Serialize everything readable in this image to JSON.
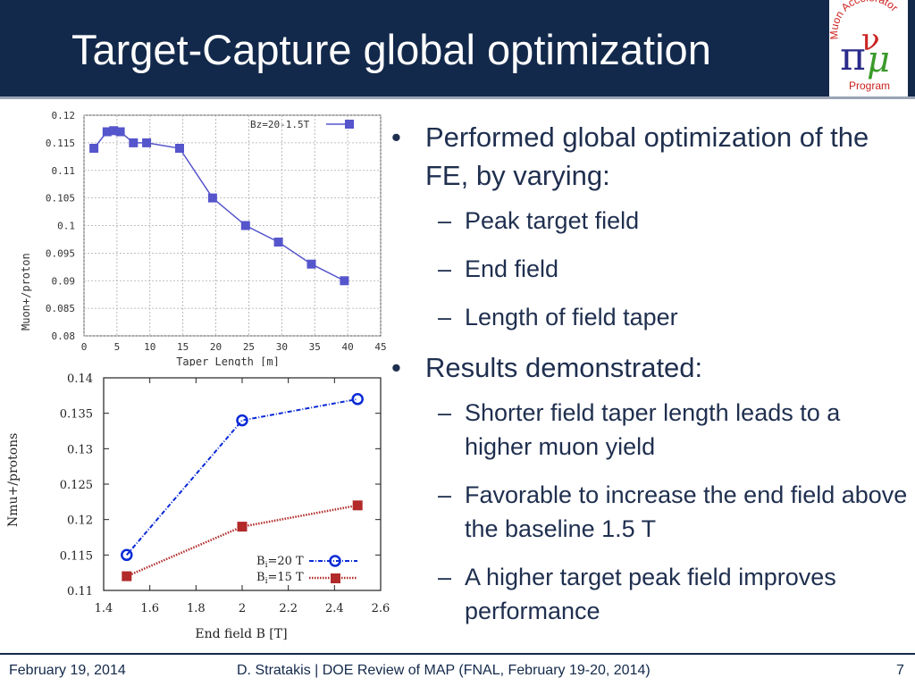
{
  "slide": {
    "title": "Target-Capture global optimization"
  },
  "logo": {
    "text_top": "Muon Accelerator",
    "text_bottom": "Program",
    "glyphs": [
      "π",
      "ν",
      "μ"
    ]
  },
  "bullets": [
    {
      "text": "Performed global optimization of the FE, by varying:",
      "sub": [
        "Peak target field",
        "End field",
        "Length of field taper"
      ]
    },
    {
      "text": "Results demonstrated:",
      "sub": [
        "Shorter field taper length leads to a higher muon yield",
        "Favorable to increase the end field above the baseline 1.5 T",
        "A higher target peak field improves performance"
      ]
    }
  ],
  "footer": {
    "date": "February 19, 2014",
    "center": "D. Stratakis | DOE Review of MAP (FNAL, February 19-20, 2014)",
    "page": "7"
  },
  "colors": {
    "header_bg": "#13294b",
    "chart1_series": "#5555cc",
    "chart2_series1": "#0a2ad6",
    "chart2_series2": "#b22a2a"
  },
  "chart_data": [
    {
      "type": "line",
      "xlabel": "Taper Length [m]",
      "ylabel": "Muon+/proton",
      "xlim": [
        0,
        45
      ],
      "ylim": [
        0.08,
        0.12
      ],
      "xticks": [
        "0",
        "5",
        "10",
        "15",
        "20",
        "25",
        "30",
        "35",
        "40",
        "45"
      ],
      "yticks": [
        "0.08",
        "0.085",
        "0.09",
        "0.095",
        "0.1",
        "0.105",
        "0.11",
        "0.115",
        "0.12"
      ],
      "grid": true,
      "legend_position": "top-right",
      "series": [
        {
          "name": "Bz=20-1.5T",
          "x": [
            1.5,
            3.5,
            4.5,
            5.5,
            7.5,
            9.5,
            14.5,
            19.5,
            24.5,
            29.5,
            34.5,
            39.5
          ],
          "y": [
            0.114,
            0.117,
            0.1172,
            0.117,
            0.115,
            0.115,
            0.114,
            0.105,
            0.1,
            0.097,
            0.093,
            0.09
          ]
        }
      ]
    },
    {
      "type": "line",
      "xlabel": "End field B [T]",
      "ylabel": "Nmu+/protons",
      "xlim": [
        1.4,
        2.6
      ],
      "ylim": [
        0.11,
        0.14
      ],
      "xticks": [
        "1.4",
        "1.6",
        "1.8",
        "2",
        "2.2",
        "2.4",
        "2.6"
      ],
      "yticks": [
        "0.11",
        "0.115",
        "0.12",
        "0.125",
        "0.13",
        "0.135",
        "0.14"
      ],
      "grid": false,
      "legend_position": "bottom-right",
      "series": [
        {
          "name_main": "B",
          "name_sub": "i",
          "name_rest": "=20 T",
          "x": [
            1.5,
            2.0,
            2.5
          ],
          "y": [
            0.115,
            0.134,
            0.137
          ]
        },
        {
          "name_main": "B",
          "name_sub": "i",
          "name_rest": "=15 T",
          "x": [
            1.5,
            2.0,
            2.5
          ],
          "y": [
            0.112,
            0.119,
            0.122
          ]
        }
      ]
    }
  ]
}
